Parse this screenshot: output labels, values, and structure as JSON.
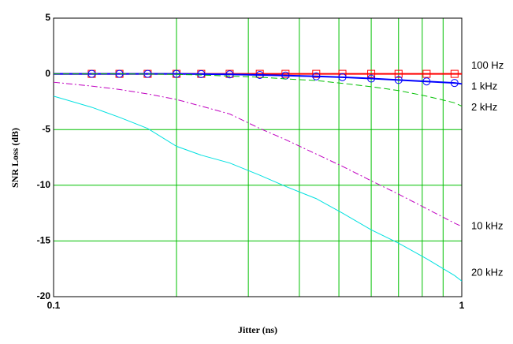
{
  "chart_data": {
    "type": "line",
    "xlabel": "Jitter (ns)",
    "ylabel": "SNR Loss (dB)",
    "xscale": "log",
    "xlim": [
      0.1,
      1
    ],
    "xticks": [
      0.1,
      1
    ],
    "xminor": [
      0.2,
      0.3,
      0.4,
      0.5,
      0.6,
      0.7,
      0.8,
      0.9
    ],
    "ylim": [
      -20,
      5
    ],
    "yticks": [
      -20,
      -15,
      -10,
      -5,
      0,
      5
    ],
    "grid": true,
    "grid_color": "#00c000",
    "x": [
      0.1,
      0.124,
      0.145,
      0.17,
      0.2,
      0.23,
      0.27,
      0.32,
      0.37,
      0.44,
      0.51,
      0.6,
      0.7,
      0.82,
      0.96,
      1
    ],
    "series": [
      {
        "name": "100 Hz",
        "color": "#ff0000",
        "style": "solid",
        "marker": "square",
        "values": [
          0,
          0,
          0,
          0,
          0,
          0,
          0,
          0,
          0,
          0,
          0,
          0,
          0,
          0,
          0,
          0
        ]
      },
      {
        "name": "1 kHz",
        "color": "#0000ff",
        "style": "solid",
        "marker": "circle",
        "values": [
          0,
          0,
          0,
          0,
          0,
          -0.02,
          -0.05,
          -0.1,
          -0.15,
          -0.22,
          -0.3,
          -0.42,
          -0.55,
          -0.68,
          -0.82,
          -0.9
        ]
      },
      {
        "name": "2 kHz",
        "color": "#00c000",
        "style": "dashed",
        "values": [
          0,
          0,
          0,
          -0.02,
          -0.05,
          -0.1,
          -0.2,
          -0.3,
          -0.45,
          -0.6,
          -0.85,
          -1.15,
          -1.5,
          -2,
          -2.6,
          -2.9
        ]
      },
      {
        "name": "10 kHz",
        "color": "#c000c0",
        "style": "dashdot",
        "values": [
          -0.75,
          -1.1,
          -1.4,
          -1.8,
          -2.3,
          -2.9,
          -3.6,
          -4.9,
          -5.9,
          -7.2,
          -8.3,
          -9.6,
          -10.8,
          -12.1,
          -13.4,
          -13.7
        ]
      },
      {
        "name": "20 kHz",
        "color": "#00e0e0",
        "style": "solid",
        "values": [
          -2,
          -3,
          -3.9,
          -4.9,
          -6.5,
          -7.3,
          -8,
          -9.1,
          -10.1,
          -11.2,
          -12.5,
          -14,
          -15.2,
          -16.6,
          -18.1,
          -18.6
        ]
      }
    ]
  }
}
